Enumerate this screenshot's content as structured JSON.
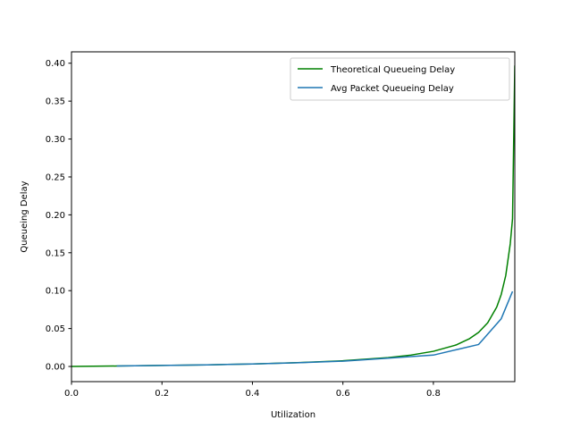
{
  "chart_data": {
    "type": "line",
    "xlabel": "Utilization",
    "ylabel": "Queueing Delay",
    "xlim": [
      0.0,
      0.98
    ],
    "ylim": [
      -0.02,
      0.415
    ],
    "xticks": [
      0.0,
      0.2,
      0.4,
      0.6,
      0.8
    ],
    "xtick_labels": [
      "0.0",
      "0.2",
      "0.4",
      "0.6",
      "0.8"
    ],
    "yticks": [
      0.0,
      0.05,
      0.1,
      0.15,
      0.2,
      0.25,
      0.3,
      0.35,
      0.4
    ],
    "ytick_labels": [
      "0.00",
      "0.05",
      "0.10",
      "0.15",
      "0.20",
      "0.25",
      "0.30",
      "0.35",
      "0.40"
    ],
    "grid": false,
    "legend_position": "top-right",
    "series": [
      {
        "name": "Theoretical Queueing Delay",
        "color": "#008000",
        "x": [
          0.0,
          0.1,
          0.2,
          0.3,
          0.4,
          0.5,
          0.6,
          0.7,
          0.75,
          0.8,
          0.85,
          0.88,
          0.9,
          0.92,
          0.94,
          0.95,
          0.96,
          0.97,
          0.975,
          0.98
        ],
        "y": [
          0.0,
          0.0006,
          0.0013,
          0.0021,
          0.0033,
          0.005,
          0.0075,
          0.0117,
          0.015,
          0.02,
          0.0283,
          0.0367,
          0.045,
          0.0575,
          0.0783,
          0.095,
          0.12,
          0.162,
          0.195,
          0.397
        ]
      },
      {
        "name": "Avg Packet Queueing Delay",
        "color": "#1f77b4",
        "x": [
          0.1,
          0.2,
          0.3,
          0.4,
          0.5,
          0.6,
          0.7,
          0.8,
          0.85,
          0.9,
          0.95,
          0.975
        ],
        "y": [
          0.0006,
          0.0013,
          0.0021,
          0.0033,
          0.0049,
          0.007,
          0.011,
          0.015,
          0.022,
          0.029,
          0.063,
          0.099
        ]
      }
    ]
  }
}
